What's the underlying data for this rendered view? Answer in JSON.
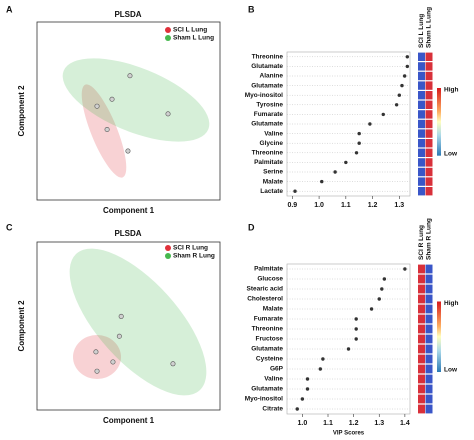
{
  "chart_data": [
    {
      "type": "scatter",
      "panel": "A",
      "title": "PLSDA",
      "xlabel": "Component 1",
      "ylabel": "Component 2",
      "xlim": [
        0,
        100
      ],
      "ylim": [
        0,
        100
      ],
      "series": [
        {
          "name": "SCI L Lung",
          "color": "#e0303a",
          "x": [
            32.8,
            38.3,
            49.7
          ],
          "values": [
            52.7,
            39.6,
            27.5
          ]
        },
        {
          "name": "Sham L Lung",
          "color": "#46b84e",
          "x": [
            50.8,
            41,
            71.6
          ],
          "values": [
            69.8,
            56.6,
            48.4
          ]
        }
      ]
    },
    {
      "type": "dot",
      "panel": "B",
      "categories": [
        "Threonine",
        "Glutamate",
        "Alanine",
        "Glutamate",
        "Myo-inositol",
        "Tyrosine",
        "Fumarate",
        "Glutamate",
        "Valine",
        "Glycine",
        "Threonine",
        "Palmitate",
        "Serine",
        "Malate",
        "Lactate"
      ],
      "values": [
        1.33,
        1.33,
        1.32,
        1.31,
        1.3,
        1.29,
        1.24,
        1.19,
        1.15,
        1.15,
        1.14,
        1.1,
        1.06,
        1.01,
        0.91
      ],
      "xlim": [
        0.88,
        1.34
      ],
      "xticks": [
        0.9,
        {
          "value": 1.0,
          "label": "1.0"
        },
        1.1,
        1.2,
        1.3
      ],
      "grid": true,
      "heatmap": {
        "columns": [
          "SCI L Lung",
          "Sham L Lung"
        ],
        "column_colors": [
          "#3a56c8",
          "#d8303a"
        ],
        "high": "High",
        "low": "Low"
      }
    },
    {
      "type": "scatter",
      "panel": "C",
      "title": "PLSDA",
      "xlabel": "Component 1",
      "ylabel": "Component 2",
      "xlim": [
        0,
        100
      ],
      "ylim": [
        0,
        100
      ],
      "series": [
        {
          "name": "SCI R Lung",
          "color": "#e0303a",
          "x": [
            32.2,
            41.5,
            32.8
          ],
          "values": [
            34.6,
            28.6,
            23.1
          ]
        },
        {
          "name": "Sham R Lung",
          "color": "#46b84e",
          "x": [
            46,
            45,
            74.3
          ],
          "values": [
            55.7,
            43.9,
            27.5
          ]
        }
      ]
    },
    {
      "type": "dot",
      "panel": "D",
      "xlabel": "VIP Scores",
      "categories": [
        "Palmitate",
        "Glucose",
        "Stearic acid",
        "Cholesterol",
        "Malate",
        "Fumarate",
        "Threonine",
        "Fructose",
        "Glutamate",
        "Cysteine",
        "G6P",
        "Valine",
        "Glutamate",
        "Myo-inositol",
        "Citrate"
      ],
      "values": [
        1.4,
        1.32,
        1.31,
        1.3,
        1.27,
        1.21,
        1.21,
        1.21,
        1.18,
        1.08,
        1.07,
        1.02,
        1.02,
        1.0,
        0.98
      ],
      "xlim": [
        0.94,
        1.42
      ],
      "xticks": [
        {
          "value": 1.0,
          "label": "1.0"
        },
        1.1,
        1.2,
        1.3,
        1.4
      ],
      "grid": true,
      "heatmap": {
        "columns": [
          "SCI R Lung",
          "Sham R Lung"
        ],
        "column_colors": [
          "#d8303a",
          "#3a56c8"
        ],
        "high": "High",
        "low": "Low"
      }
    }
  ]
}
